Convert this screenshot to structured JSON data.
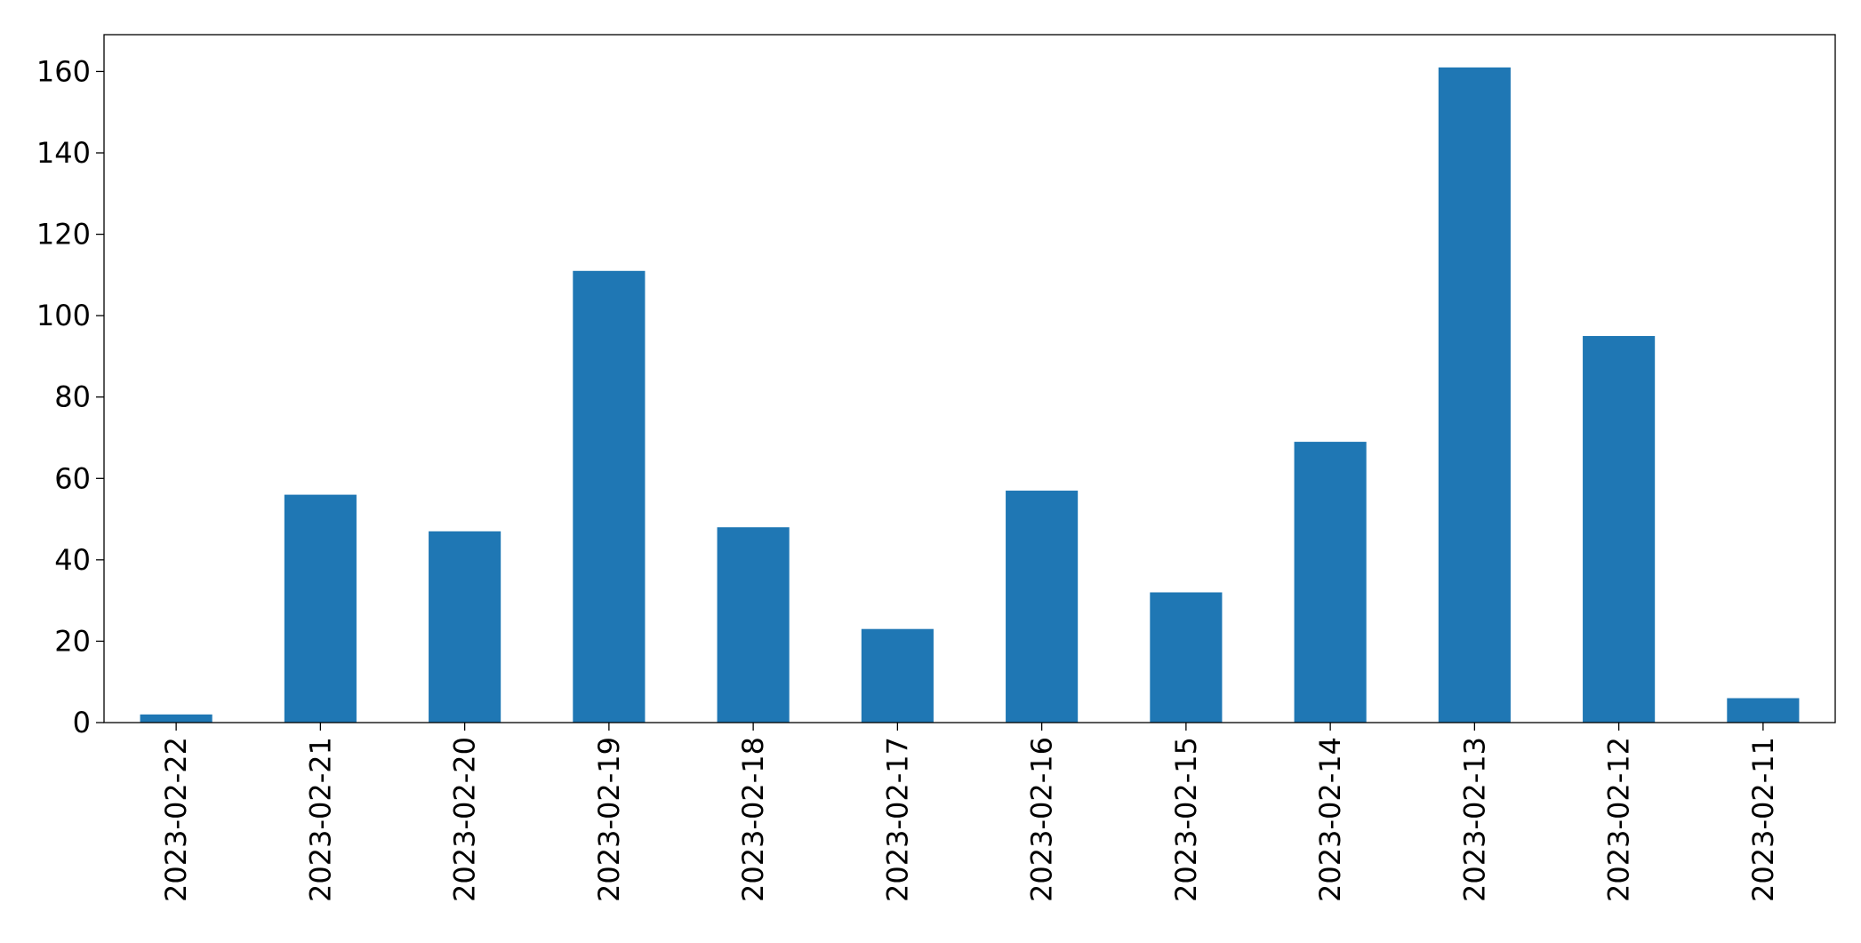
{
  "chart_data": {
    "type": "bar",
    "categories": [
      "2023-02-22",
      "2023-02-21",
      "2023-02-20",
      "2023-02-19",
      "2023-02-18",
      "2023-02-17",
      "2023-02-16",
      "2023-02-15",
      "2023-02-14",
      "2023-02-13",
      "2023-02-12",
      "2023-02-11"
    ],
    "values": [
      2,
      56,
      47,
      111,
      48,
      23,
      57,
      32,
      69,
      161,
      95,
      6
    ],
    "color": "#1f77b4",
    "ylim": [
      0,
      169.05
    ],
    "yticks": [
      0,
      20,
      40,
      60,
      80,
      100,
      120,
      140,
      160
    ],
    "grid": false
  }
}
